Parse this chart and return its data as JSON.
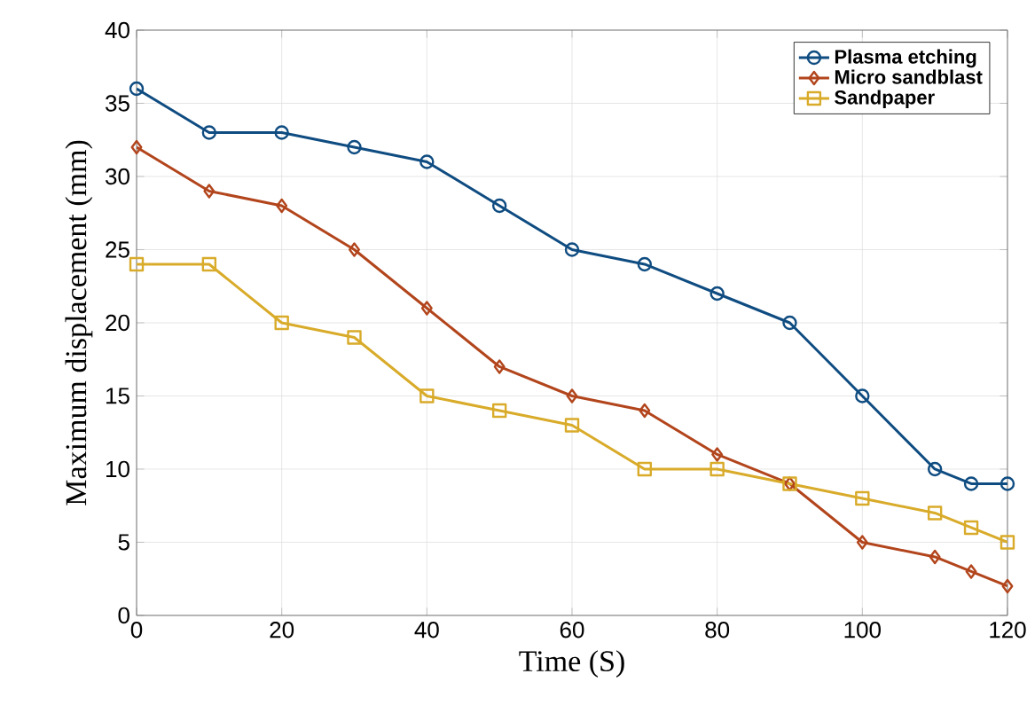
{
  "chart_data": {
    "type": "line",
    "xlabel": "Time (S)",
    "ylabel": "Maximum displacement (mm)",
    "x": [
      0,
      10,
      20,
      30,
      40,
      50,
      60,
      70,
      80,
      90,
      100,
      110,
      115,
      120
    ],
    "series": [
      {
        "name": "Plasma etching",
        "color": "#0f4c81",
        "marker": "circle",
        "values": [
          36,
          33,
          33,
          32,
          31,
          28,
          25,
          24,
          22,
          20,
          15,
          10,
          9,
          9
        ]
      },
      {
        "name": "Micro sandblast",
        "color": "#b2451c",
        "marker": "diamond",
        "values": [
          32,
          29,
          28,
          25,
          21,
          17,
          15,
          14,
          11,
          9,
          5,
          4,
          3,
          2
        ]
      },
      {
        "name": "Sandpaper",
        "color": "#d9ab2a",
        "marker": "square",
        "values": [
          24,
          24,
          20,
          19,
          15,
          14,
          13,
          10,
          10,
          9,
          8,
          7,
          6,
          5
        ]
      }
    ],
    "xlim": [
      0,
      120
    ],
    "ylim": [
      0,
      40
    ],
    "xticks": [
      0,
      20,
      40,
      60,
      80,
      100,
      120
    ],
    "yticks": [
      0,
      5,
      10,
      15,
      20,
      25,
      30,
      35,
      40
    ],
    "grid": true,
    "legend": "top right",
    "line_style": "solid"
  }
}
